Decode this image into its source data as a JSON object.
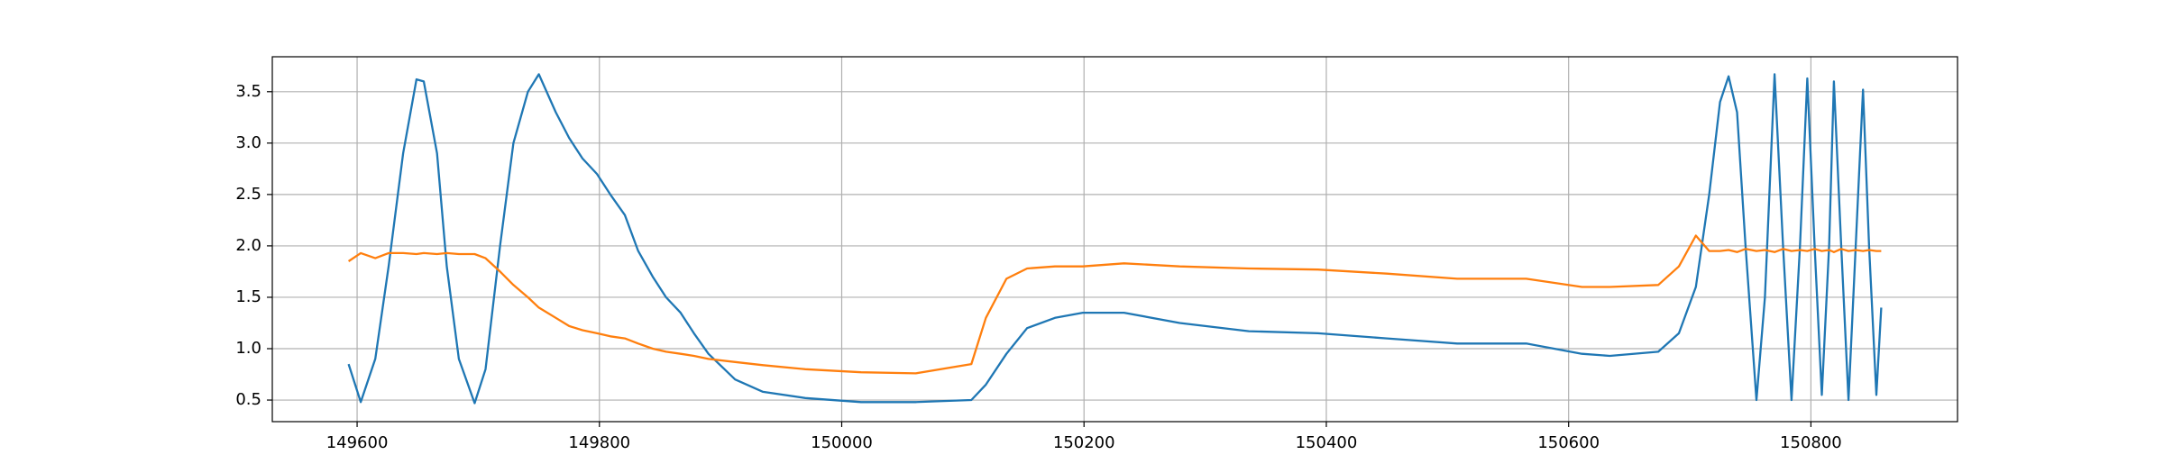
{
  "chart_data": {
    "type": "line",
    "x": [
      149593,
      149603,
      149615,
      149626,
      149638,
      149649,
      149655,
      149666,
      149674,
      149684,
      149697,
      149706,
      149718,
      149729,
      149741,
      149750,
      149764,
      149775,
      149786,
      149798,
      149809,
      149821,
      149832,
      149844,
      149855,
      149867,
      149878,
      149890,
      149912,
      149935,
      149970,
      150016,
      150061,
      150107,
      150119,
      150136,
      150153,
      150176,
      150199,
      150233,
      150279,
      150336,
      150393,
      150450,
      150508,
      150565,
      150611,
      150634,
      150674,
      150691,
      150705,
      150716,
      150725,
      150732,
      150739,
      150746,
      150755,
      150762,
      150770,
      150777,
      150784,
      150791,
      150797,
      150803,
      150809,
      150815,
      150819,
      150825,
      150831,
      150837,
      150843,
      150848,
      150854,
      150858
    ],
    "series": [
      {
        "color": "#1f77b4",
        "values": [
          0.85,
          0.48,
          0.9,
          1.8,
          2.9,
          3.62,
          3.6,
          2.9,
          1.8,
          0.9,
          0.47,
          0.8,
          2.0,
          3.0,
          3.5,
          3.67,
          3.3,
          3.05,
          2.85,
          2.7,
          2.5,
          2.3,
          1.95,
          1.7,
          1.5,
          1.35,
          1.15,
          0.95,
          0.7,
          0.58,
          0.52,
          0.48,
          0.48,
          0.5,
          0.65,
          0.95,
          1.2,
          1.3,
          1.35,
          1.35,
          1.25,
          1.17,
          1.15,
          1.1,
          1.05,
          1.05,
          0.95,
          0.93,
          0.97,
          1.15,
          1.6,
          2.5,
          3.4,
          3.65,
          3.3,
          2.0,
          0.5,
          1.5,
          3.67,
          2.0,
          0.5,
          2.0,
          3.63,
          2.0,
          0.55,
          2.0,
          3.6,
          2.0,
          0.5,
          2.0,
          3.52,
          2.0,
          0.55,
          1.4
        ]
      },
      {
        "color": "#ff7f0e",
        "values": [
          1.85,
          1.93,
          1.88,
          1.93,
          1.93,
          1.92,
          1.93,
          1.92,
          1.93,
          1.92,
          1.92,
          1.88,
          1.75,
          1.62,
          1.5,
          1.4,
          1.3,
          1.22,
          1.18,
          1.15,
          1.12,
          1.1,
          1.05,
          1.0,
          0.97,
          0.95,
          0.93,
          0.9,
          0.87,
          0.84,
          0.8,
          0.77,
          0.76,
          0.85,
          1.3,
          1.68,
          1.78,
          1.8,
          1.8,
          1.83,
          1.8,
          1.78,
          1.77,
          1.73,
          1.68,
          1.68,
          1.6,
          1.6,
          1.62,
          1.8,
          2.1,
          1.95,
          1.95,
          1.96,
          1.94,
          1.97,
          1.95,
          1.96,
          1.94,
          1.97,
          1.95,
          1.96,
          1.95,
          1.97,
          1.95,
          1.96,
          1.94,
          1.97,
          1.95,
          1.96,
          1.95,
          1.96,
          1.95,
          1.95
        ]
      }
    ],
    "xlim": [
      149530,
      150921
    ],
    "xticks": [
      149600,
      149800,
      150000,
      150200,
      150400,
      150600,
      150800
    ],
    "ylim": [
      0.29,
      3.84
    ],
    "yticks": [
      0.5,
      {
        "value": 1.0,
        "label": "1.0"
      },
      1.5,
      {
        "value": 2.0,
        "label": "2.0"
      },
      2.5,
      {
        "value": 3.0,
        "label": "3.0"
      },
      3.5
    ],
    "grid": true
  }
}
